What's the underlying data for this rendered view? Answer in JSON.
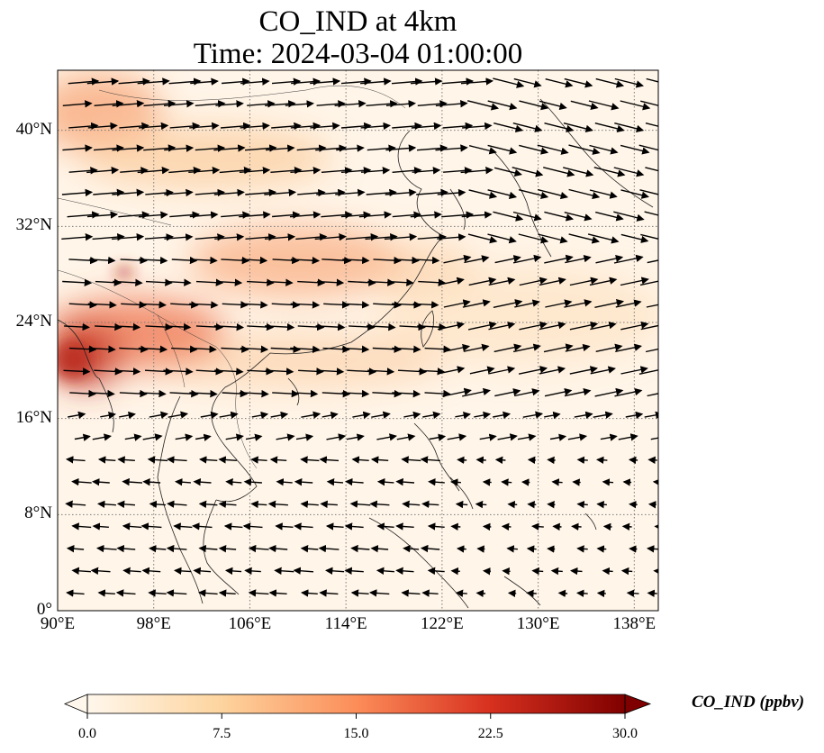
{
  "title": {
    "line1": "CO_IND at 4km",
    "line2": "Time: 2024-03-04 01:00:00"
  },
  "map": {
    "extent": {
      "lon": [
        90,
        140
      ],
      "lat": [
        0,
        45
      ]
    },
    "lon_ticks": [
      {
        "value": 90,
        "label": "90°E"
      },
      {
        "value": 98,
        "label": "98°E"
      },
      {
        "value": 106,
        "label": "106°E"
      },
      {
        "value": 114,
        "label": "114°E"
      },
      {
        "value": 122,
        "label": "122°E"
      },
      {
        "value": 130,
        "label": "130°E"
      },
      {
        "value": 138,
        "label": "138°E"
      }
    ],
    "lat_ticks": [
      {
        "value": 0,
        "label": "0°"
      },
      {
        "value": 8,
        "label": "8°N"
      },
      {
        "value": 16,
        "label": "16°N"
      },
      {
        "value": 24,
        "label": "24°N"
      },
      {
        "value": 32,
        "label": "32°N"
      },
      {
        "value": 40,
        "label": "40°N"
      }
    ],
    "gridlines": true,
    "colormap_colors": [
      "#fff7ec",
      "#fdd49e",
      "#fc8d59",
      "#d7301f",
      "#7f0000"
    ],
    "background_color": "#fff5e8"
  },
  "colorbar": {
    "title": "CO_IND (ppbv)",
    "min": 0,
    "max": 30,
    "ticks": [
      {
        "value": 0,
        "label": "0.0"
      },
      {
        "value": 7.5,
        "label": "7.5"
      },
      {
        "value": 15,
        "label": "15.0"
      },
      {
        "value": 22.5,
        "label": "22.5"
      },
      {
        "value": 30,
        "label": "30.0"
      }
    ],
    "extend": "both"
  }
}
